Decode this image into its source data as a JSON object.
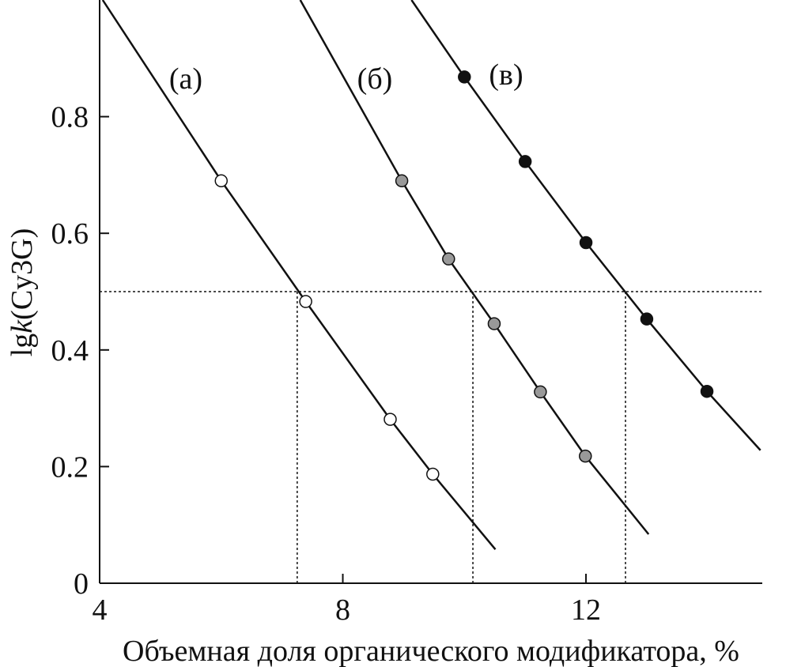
{
  "chart_data": {
    "type": "line",
    "xlabel": "Объемная доля органического модификатора, %",
    "ylabel": [
      "lg",
      "k",
      "(Cy3G)"
    ],
    "xlim": [
      4,
      14.9
    ],
    "ylim": [
      0,
      1.0
    ],
    "xticks": [
      4,
      8,
      12
    ],
    "yticks": [
      0,
      0.2,
      0.4,
      0.6,
      0.8
    ],
    "series": [
      {
        "name": "(а)",
        "color": "#ffffff",
        "x": [
          6.0,
          7.39,
          8.78,
          9.48
        ],
        "values": [
          0.69,
          0.483,
          0.281,
          0.187
        ],
        "curve_x": [
          4.05,
          6.0,
          7.39,
          8.78,
          9.48,
          10.51
        ],
        "curve_values": [
          1.0,
          0.69,
          0.483,
          0.281,
          0.187,
          0.058
        ]
      },
      {
        "name": "(б)",
        "color": "#999999",
        "x": [
          8.97,
          9.74,
          10.49,
          11.25,
          11.99
        ],
        "values": [
          0.69,
          0.556,
          0.445,
          0.328,
          0.218
        ],
        "curve_x": [
          7.3,
          8.97,
          9.74,
          10.49,
          11.25,
          11.99,
          13.03
        ],
        "curve_values": [
          1.0,
          0.69,
          0.556,
          0.445,
          0.328,
          0.218,
          0.084
        ]
      },
      {
        "name": "(в)",
        "color": "#111111",
        "x": [
          10.0,
          11.0,
          12.0,
          13.0,
          13.99
        ],
        "values": [
          0.868,
          0.723,
          0.584,
          0.453,
          0.329
        ],
        "curve_x": [
          9.13,
          10.0,
          11.0,
          12.0,
          13.0,
          13.99,
          14.87
        ],
        "curve_values": [
          1.0,
          0.868,
          0.723,
          0.584,
          0.453,
          0.329,
          0.228
        ]
      }
    ],
    "reference": {
      "y": 0.5,
      "x": [
        7.25,
        10.14,
        12.65
      ]
    }
  }
}
